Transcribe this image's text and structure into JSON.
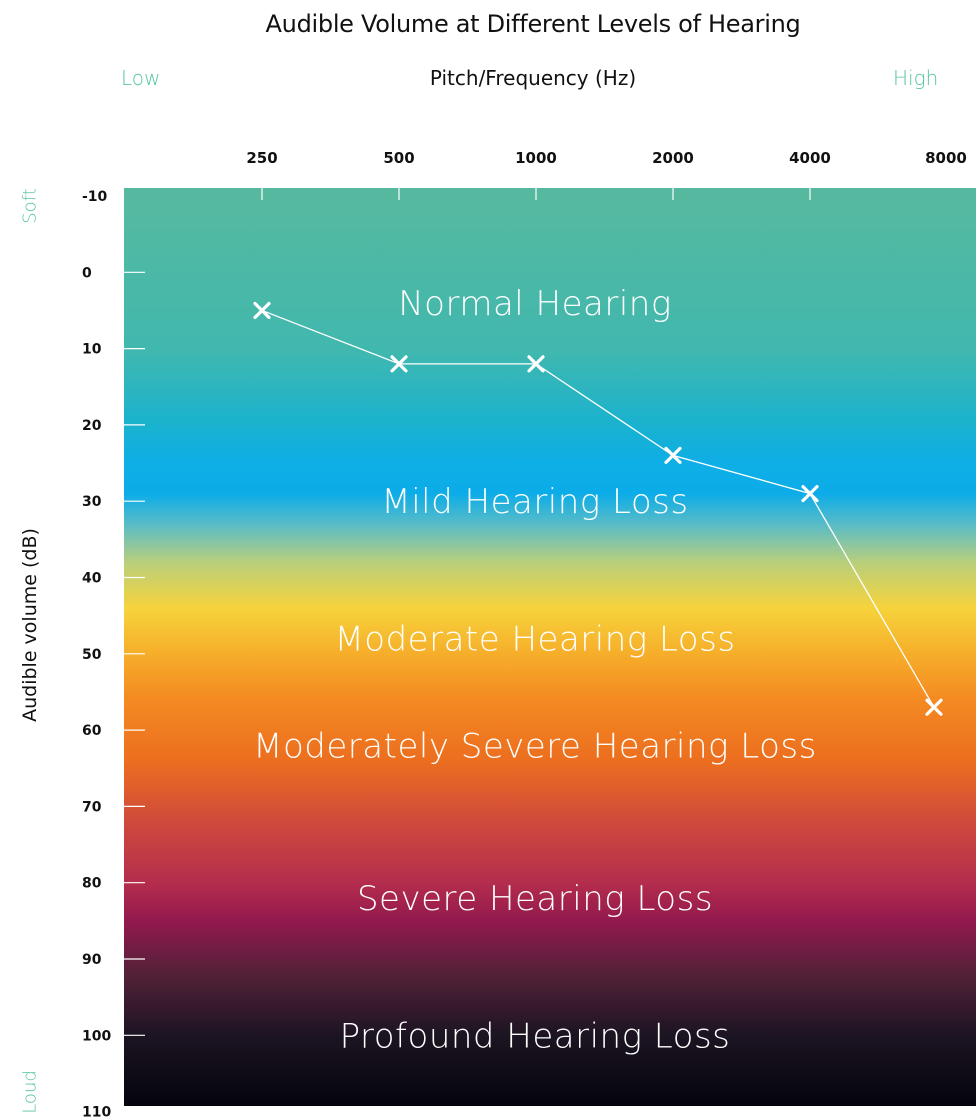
{
  "header": {
    "title": "Audible Volume at Different Levels of Hearing",
    "low_label": "Low",
    "high_label": "High",
    "soft_label": "Soft",
    "loud_label": "Loud"
  },
  "colors": {
    "edge_label": "#56c3a4",
    "line": "#ffffff",
    "tick": "#ffffff"
  },
  "chart_data": {
    "type": "line",
    "title": "Audible Volume at Different Levels of Hearing",
    "xlabel": "Pitch/Frequency (Hz)",
    "ylabel": "Audible volume (dB)",
    "x_categories": [
      "250",
      "500",
      "1000",
      "2000",
      "4000",
      "8000"
    ],
    "y_ticks": [
      "-10",
      "0",
      "10",
      "20",
      "30",
      "40",
      "50",
      "60",
      "70",
      "80",
      "90",
      "100",
      "110"
    ],
    "ylim": [
      -10,
      110
    ],
    "y_inverted": true,
    "grid": false,
    "series": [
      {
        "marker": "x",
        "points": [
          {
            "x": "250",
            "y": 5
          },
          {
            "x": "500",
            "y": 12
          },
          {
            "x": "1000",
            "y": 12
          },
          {
            "x": "2000",
            "y": 24
          },
          {
            "x": "4000",
            "y": 29
          },
          {
            "x": "8000",
            "y": 57
          }
        ]
      }
    ],
    "bands": [
      {
        "label": "Normal Hearing",
        "y": 4
      },
      {
        "label": "Mild Hearing Loss",
        "y": 30
      },
      {
        "label": "Moderate Hearing Loss",
        "y": 48
      },
      {
        "label": "Moderately Severe Hearing Loss",
        "y": 62
      },
      {
        "label": "Severe Hearing Loss",
        "y": 82
      },
      {
        "label": "Profound Hearing Loss",
        "y": 100
      }
    ],
    "gradient": [
      {
        "y": -10,
        "color": "#56b99f"
      },
      {
        "y": 10,
        "color": "#41b8ae"
      },
      {
        "y": 20,
        "color": "#1ab2cf"
      },
      {
        "y": 25,
        "color": "#0eaee6"
      },
      {
        "y": 29,
        "color": "#0cace8"
      },
      {
        "y": 33,
        "color": "#58bcc8"
      },
      {
        "y": 38,
        "color": "#b9cf7c"
      },
      {
        "y": 44,
        "color": "#f6d33c"
      },
      {
        "y": 50,
        "color": "#f6ae2a"
      },
      {
        "y": 56,
        "color": "#f48a22"
      },
      {
        "y": 64,
        "color": "#ec6e1f"
      },
      {
        "y": 72,
        "color": "#cf4a3c"
      },
      {
        "y": 80,
        "color": "#b42d4d"
      },
      {
        "y": 85,
        "color": "#93194d"
      },
      {
        "y": 92,
        "color": "#532138"
      },
      {
        "y": 100,
        "color": "#1c1422"
      },
      {
        "y": 110,
        "color": "#04040c"
      }
    ]
  }
}
